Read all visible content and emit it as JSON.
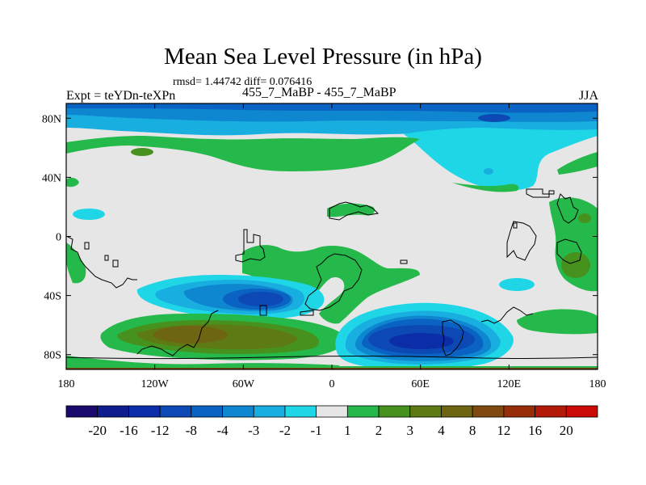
{
  "title": "Mean Sea Level Pressure (in hPa)",
  "stats_line": "rmsd= 1.44742 diff= 0.076416",
  "left_label": "Expt = teYDn-teXPn",
  "center_label": "455_7_MaBP - 455_7_MaBP",
  "season_label": "JJA",
  "lat_ticks": [
    {
      "label": "80N",
      "lat": 80
    },
    {
      "label": "40N",
      "lat": 40
    },
    {
      "label": "0",
      "lat": 0
    },
    {
      "label": "40S",
      "lat": -40
    },
    {
      "label": "80S",
      "lat": -80
    }
  ],
  "lon_ticks": [
    {
      "label": "180",
      "lon": -180
    },
    {
      "label": "120W",
      "lon": -120
    },
    {
      "label": "60W",
      "lon": -60
    },
    {
      "label": "0",
      "lon": 0
    },
    {
      "label": "60E",
      "lon": 60
    },
    {
      "label": "120E",
      "lon": 120
    },
    {
      "label": "180",
      "lon": 180
    }
  ],
  "colorbar": {
    "labels": [
      "-20",
      "-16",
      "-12",
      "-8",
      "-4",
      "-3",
      "-2",
      "-1",
      "1",
      "2",
      "3",
      "4",
      "8",
      "12",
      "16",
      "20"
    ],
    "colors": [
      "#1a0a6e",
      "#0e1d8c",
      "#0b2ea8",
      "#0d49b5",
      "#0a62c2",
      "#0f86d0",
      "#19aee0",
      "#1ed6e6",
      "#e6e6e6",
      "#25b84a",
      "#47921e",
      "#5e7a14",
      "#6d6512",
      "#7f4a10",
      "#962e0a",
      "#b21907",
      "#c90a05"
    ]
  }
}
